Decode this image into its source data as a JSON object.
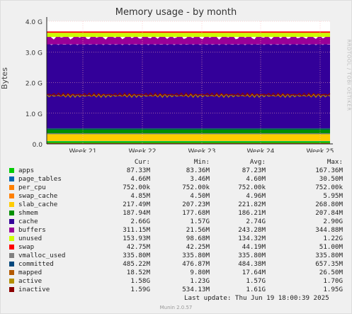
{
  "chart_data": {
    "type": "area",
    "title": "Memory usage - by month",
    "ylabel": "Bytes",
    "side_label": "RRDTOOL / TOBI OETIKER",
    "ylim": [
      0,
      4000000000
    ],
    "y_ticks": [
      {
        "value": 0,
        "label": "0.0"
      },
      {
        "value": 1000000000,
        "label": "1.0 G"
      },
      {
        "value": 2000000000,
        "label": "2.0 G"
      },
      {
        "value": 3000000000,
        "label": "3.0 G"
      },
      {
        "value": 4000000000,
        "label": "4.0 G"
      }
    ],
    "x_ticks": [
      "Week 21",
      "Week 22",
      "Week 23",
      "Week 24",
      "Week 25"
    ],
    "columns": [
      "Cur:",
      "Min:",
      "Avg:",
      "Max:"
    ],
    "series": [
      {
        "name": "apps",
        "color": "#00cc00",
        "avg_bytes": 87230000,
        "values": [
          "87.33M",
          "83.36M",
          "87.23M",
          "167.36M"
        ]
      },
      {
        "name": "page_tables",
        "color": "#0066b3",
        "avg_bytes": 4600000,
        "values": [
          "4.66M",
          "3.46M",
          "4.60M",
          "30.50M"
        ]
      },
      {
        "name": "per_cpu",
        "color": "#ff8000",
        "avg_bytes": 752000,
        "values": [
          "752.00k",
          "752.00k",
          "752.00k",
          "752.00k"
        ]
      },
      {
        "name": "swap_cache",
        "color": "#ff8000",
        "avg_bytes": 4960000,
        "values": [
          "4.85M",
          "4.50M",
          "4.96M",
          "5.95M"
        ]
      },
      {
        "name": "slab_cache",
        "color": "#ffcc00",
        "avg_bytes": 221820000,
        "values": [
          "217.49M",
          "207.23M",
          "221.82M",
          "268.80M"
        ]
      },
      {
        "name": "shmem",
        "color": "#008f00",
        "avg_bytes": 186210000,
        "values": [
          "187.94M",
          "177.68M",
          "186.21M",
          "207.84M"
        ]
      },
      {
        "name": "cache",
        "color": "#330099",
        "avg_bytes": 2740000000,
        "values": [
          "2.66G",
          "1.57G",
          "2.74G",
          "2.90G"
        ]
      },
      {
        "name": "buffers",
        "color": "#990099",
        "avg_bytes": 243280000,
        "values": [
          "311.15M",
          "21.56M",
          "243.28M",
          "344.88M"
        ]
      },
      {
        "name": "unused",
        "color": "#ccff00",
        "avg_bytes": 134320000,
        "values": [
          "153.93M",
          "98.68M",
          "134.32M",
          "1.22G"
        ]
      },
      {
        "name": "swap",
        "color": "#ff0000",
        "avg_bytes": 44190000,
        "values": [
          "42.75M",
          "42.25M",
          "44.19M",
          "51.00M"
        ]
      },
      {
        "name": "vmalloc_used",
        "color": "#808080",
        "avg_bytes": 335800000,
        "values": [
          "335.80M",
          "335.80M",
          "335.80M",
          "335.80M"
        ]
      },
      {
        "name": "committed",
        "color": "#00487d",
        "avg_bytes": 484380000,
        "values": [
          "485.22M",
          "476.87M",
          "484.38M",
          "657.35M"
        ]
      },
      {
        "name": "mapped",
        "color": "#b35a00",
        "avg_bytes": 17640000,
        "values": [
          "18.52M",
          "9.80M",
          "17.64M",
          "26.50M"
        ]
      },
      {
        "name": "active",
        "color": "#b38f00",
        "avg_bytes": 1570000000,
        "values": [
          "1.58G",
          "1.23G",
          "1.57G",
          "1.70G"
        ]
      },
      {
        "name": "inactive",
        "color": "#8c0000",
        "avg_bytes": 1610000000,
        "values": [
          "1.59G",
          "534.13M",
          "1.61G",
          "1.95G"
        ]
      }
    ]
  },
  "last_update": "Last update: Thu Jun 19 18:00:39 2025",
  "footer": "Munin 2.0.57"
}
